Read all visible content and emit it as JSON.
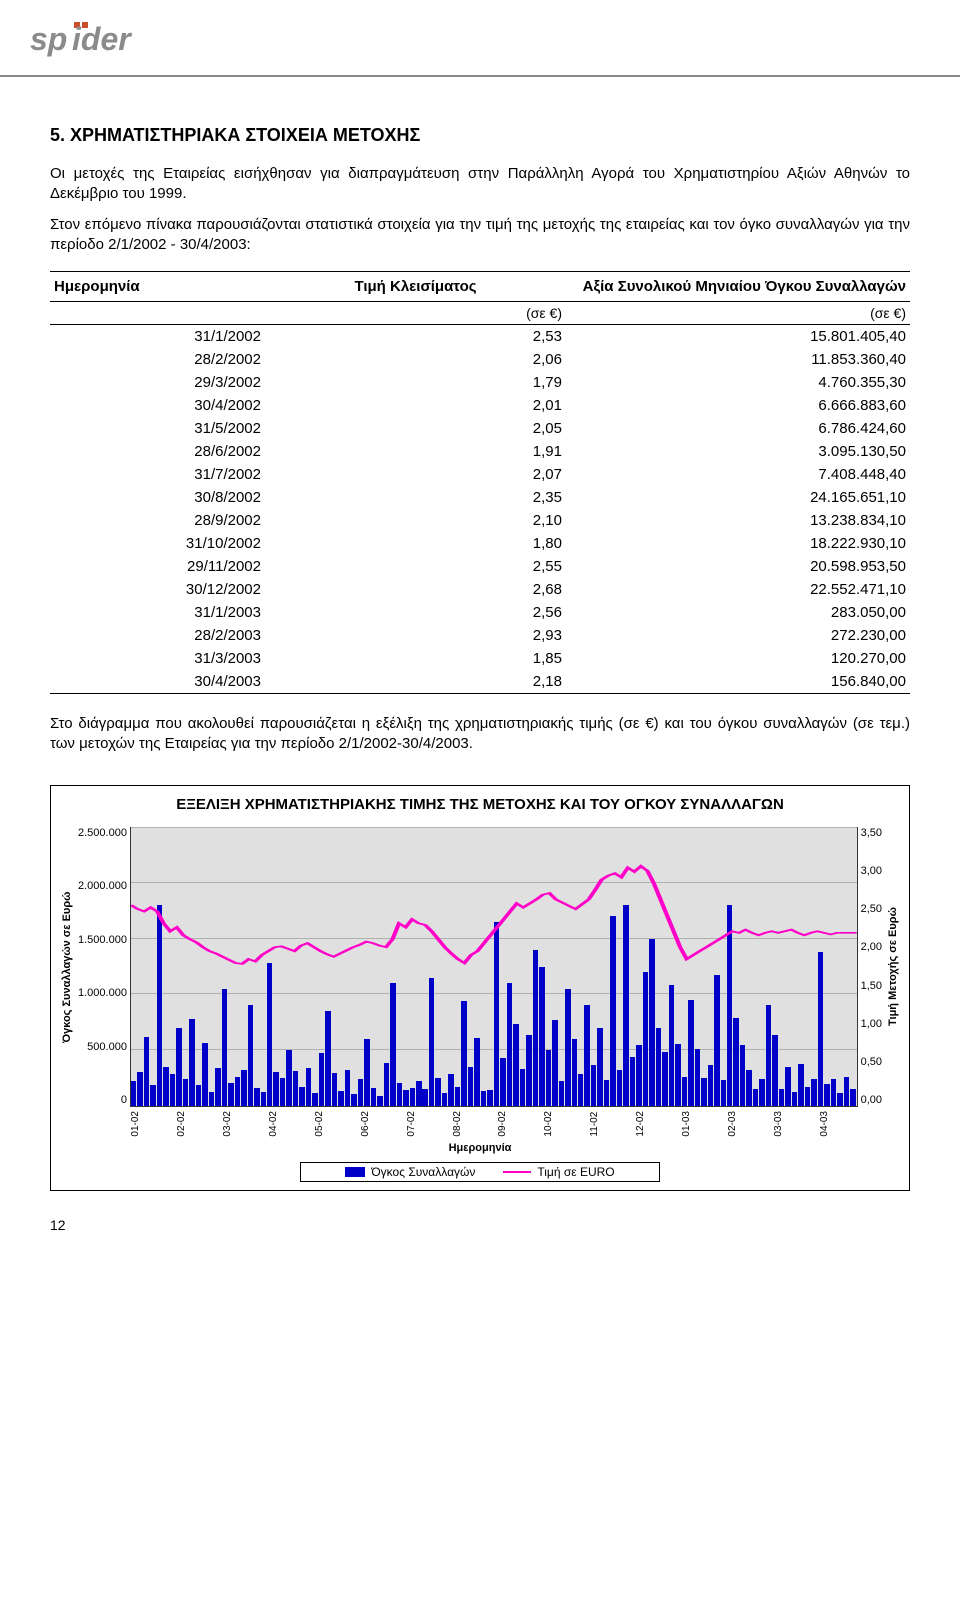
{
  "logo": {
    "text": "spider",
    "primary_color": "#8b8b8b",
    "accent_color": "#c94f2e"
  },
  "section": {
    "number": "5.",
    "title": "ΧΡΗΜΑΤΙΣΤΗΡΙΑΚΑ ΣΤΟΙΧΕΙΑ ΜΕΤΟΧΗΣ"
  },
  "para1": "Οι μετοχές της Εταιρείας εισήχθησαν για διαπραγμάτευση στην Παράλληλη Αγορά του Χρηματιστηρίου Αξιών Αθηνών το Δεκέμβριο του 1999.",
  "para2": "Στον επόμενο πίνακα παρουσιάζονται στατιστικά στοιχεία για την τιμή της μετοχής της εταιρείας και τον όγκο συναλλαγών για την περίοδο 2/1/2002 - 30/4/2003:",
  "table": {
    "headers": {
      "date": "Ημερομηνία",
      "price": "Τιμή Κλεισίματος",
      "volume": "Αξία Συνολικού Μηνιαίου Όγκου Συναλλαγών"
    },
    "unit": "(σε €)",
    "rows": [
      {
        "date": "31/1/2002",
        "price": "2,53",
        "vol": "15.801.405,40"
      },
      {
        "date": "28/2/2002",
        "price": "2,06",
        "vol": "11.853.360,40"
      },
      {
        "date": "29/3/2002",
        "price": "1,79",
        "vol": "4.760.355,30"
      },
      {
        "date": "30/4/2002",
        "price": "2,01",
        "vol": "6.666.883,60"
      },
      {
        "date": "31/5/2002",
        "price": "2,05",
        "vol": "6.786.424,60"
      },
      {
        "date": "28/6/2002",
        "price": "1,91",
        "vol": "3.095.130,50"
      },
      {
        "date": "31/7/2002",
        "price": "2,07",
        "vol": "7.408.448,40"
      },
      {
        "date": "30/8/2002",
        "price": "2,35",
        "vol": "24.165.651,10"
      },
      {
        "date": "28/9/2002",
        "price": "2,10",
        "vol": "13.238.834,10"
      },
      {
        "date": "31/10/2002",
        "price": "1,80",
        "vol": "18.222.930,10"
      },
      {
        "date": "29/11/2002",
        "price": "2,55",
        "vol": "20.598.953,50"
      },
      {
        "date": "30/12/2002",
        "price": "2,68",
        "vol": "22.552.471,10"
      },
      {
        "date": "31/1/2003",
        "price": "2,56",
        "vol": "283.050,00"
      },
      {
        "date": "28/2/2003",
        "price": "2,93",
        "vol": "272.230,00"
      },
      {
        "date": "31/3/2003",
        "price": "1,85",
        "vol": "120.270,00"
      },
      {
        "date": "30/4/2003",
        "price": "2,18",
        "vol": "156.840,00"
      }
    ]
  },
  "para3": "Στο διάγραμμα που ακολουθεί παρουσιάζεται η εξέλιξη της χρηματιστηριακής τιμής (σε €) και του όγκου συναλλαγών (σε τεμ.) των μετοχών της Εταιρείας για την περίοδο 2/1/2002-30/4/2003.",
  "chart": {
    "title": "ΕΞΕΛΙΞΗ ΧΡΗΜΑΤΙΣΤΗΡΙΑΚΗΣ ΤΙΜΗΣ ΤΗΣ ΜΕΤΟΧΗΣ ΚΑΙ ΤΟΥ ΟΓΚΟΥ ΣΥΝΑΛΛΑΓΩΝ",
    "y_left_label": "Όγκος Συναλλαγών σε Ευρώ",
    "y_right_label": "Τιμή Μετοχής σε Ευρώ",
    "x_label": "Ημερομηνία",
    "y_left_ticks": [
      "2.500.000",
      "2.000.000",
      "1.500.000",
      "1.000.000",
      "500.000",
      "0"
    ],
    "y_right_ticks": [
      "3,50",
      "3,00",
      "2,50",
      "2,00",
      "1,50",
      "1,00",
      "0,50",
      "0,00"
    ],
    "x_ticks": [
      "01-02",
      "02-02",
      "03-02",
      "04-02",
      "05-02",
      "06-02",
      "07-02",
      "08-02",
      "09-02",
      "10-02",
      "11-02",
      "12-02",
      "01-03",
      "02-03",
      "03-03",
      "04-03"
    ],
    "plot_bg": "#e0e0e0",
    "grid_color": "#b0b0b0",
    "bar_color": "#0000c8",
    "line_color": "#ff00c8",
    "y_left_max": 2500000,
    "y_right_max": 3.5,
    "legend": {
      "bar": "Όγκος Συναλλαγών",
      "line": "Τιμή σε EURO"
    },
    "bars": [
      220000,
      300000,
      620000,
      180000,
      1800000,
      350000,
      280000,
      700000,
      240000,
      780000,
      180000,
      560000,
      120000,
      340000,
      1050000,
      200000,
      260000,
      320000,
      900000,
      160000,
      120000,
      1280000,
      300000,
      250000,
      500000,
      310000,
      170000,
      340000,
      110000,
      470000,
      850000,
      290000,
      130000,
      320000,
      100000,
      240000,
      600000,
      160000,
      90000,
      380000,
      1100000,
      200000,
      140000,
      160000,
      220000,
      150000,
      1150000,
      250000,
      110000,
      280000,
      170000,
      940000,
      350000,
      610000,
      130000,
      140000,
      1650000,
      430000,
      1100000,
      730000,
      330000,
      630000,
      1400000,
      1250000,
      500000,
      770000,
      220000,
      1050000,
      600000,
      280000,
      900000,
      360000,
      700000,
      230000,
      1700000,
      320000,
      1800000,
      440000,
      540000,
      1200000,
      1500000,
      700000,
      480000,
      1080000,
      550000,
      260000,
      950000,
      510000,
      250000,
      360000,
      1170000,
      230000,
      1800000,
      790000,
      540000,
      320000,
      150000,
      240000,
      900000,
      630000,
      150000,
      350000,
      120000,
      370000,
      170000,
      240000,
      1380000,
      190000,
      240000,
      110000,
      260000,
      150000
    ],
    "line_points": [
      2.53,
      2.48,
      2.45,
      2.5,
      2.45,
      2.3,
      2.2,
      2.25,
      2.15,
      2.1,
      2.06,
      2.0,
      1.95,
      1.92,
      1.88,
      1.84,
      1.8,
      1.79,
      1.85,
      1.82,
      1.9,
      1.95,
      2.0,
      2.01,
      1.98,
      1.95,
      2.02,
      2.05,
      2.0,
      1.95,
      1.91,
      1.88,
      1.92,
      1.96,
      2.0,
      2.03,
      2.07,
      2.05,
      2.02,
      2.0,
      2.1,
      2.3,
      2.25,
      2.35,
      2.3,
      2.28,
      2.2,
      2.1,
      2.0,
      1.92,
      1.85,
      1.8,
      1.9,
      1.95,
      2.05,
      2.15,
      2.25,
      2.35,
      2.45,
      2.55,
      2.5,
      2.55,
      2.6,
      2.66,
      2.68,
      2.6,
      2.56,
      2.52,
      2.48,
      2.54,
      2.6,
      2.72,
      2.85,
      2.9,
      2.93,
      2.88,
      3.0,
      2.95,
      3.02,
      2.96,
      2.8,
      2.6,
      2.4,
      2.2,
      2.0,
      1.85,
      1.9,
      1.95,
      2.0,
      2.05,
      2.1,
      2.15,
      2.2,
      2.18,
      2.22,
      2.18,
      2.15,
      2.18,
      2.2,
      2.18,
      2.2,
      2.22,
      2.18,
      2.15,
      2.18,
      2.2,
      2.18,
      2.16,
      2.18,
      2.18,
      2.18,
      2.18
    ]
  },
  "page_number": "12"
}
